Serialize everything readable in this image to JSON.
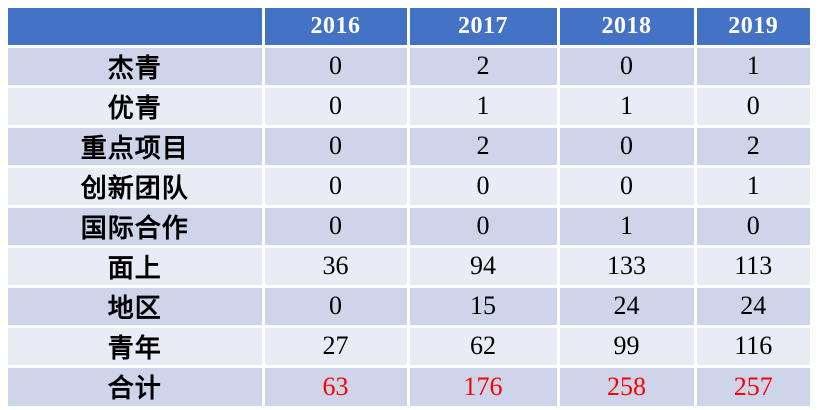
{
  "chart_data": {
    "type": "table",
    "corner_label": "",
    "categories": [
      "2016",
      "2017",
      "2018",
      "2019"
    ],
    "series": [
      {
        "name": "杰青",
        "values": [
          0,
          2,
          0,
          1
        ],
        "highlight": false
      },
      {
        "name": "优青",
        "values": [
          0,
          1,
          1,
          0
        ],
        "highlight": false
      },
      {
        "name": "重点项目",
        "values": [
          0,
          2,
          0,
          2
        ],
        "highlight": false
      },
      {
        "name": "创新团队",
        "values": [
          0,
          0,
          0,
          1
        ],
        "highlight": false
      },
      {
        "name": "国际合作",
        "values": [
          0,
          0,
          1,
          0
        ],
        "highlight": false
      },
      {
        "name": "面上",
        "values": [
          36,
          94,
          133,
          113
        ],
        "highlight": false
      },
      {
        "name": "地区",
        "values": [
          0,
          15,
          24,
          24
        ],
        "highlight": false
      },
      {
        "name": "青年",
        "values": [
          27,
          62,
          99,
          116
        ],
        "highlight": false
      },
      {
        "name": "合计",
        "values": [
          63,
          176,
          258,
          257
        ],
        "highlight": true
      }
    ],
    "layout_hints": {
      "banded_rows": true,
      "header_position": "top",
      "first_column_is_row_labels": true
    }
  },
  "colors": {
    "header_bg": "#4472C4",
    "header_text": "#FFFFFF",
    "band_dark": "#CED4EA",
    "band_light": "#E9EBF5",
    "body_text": "#000000",
    "total_value_text": "#FF0000",
    "gridline": "#FFFFFF",
    "page_bg": "#FFFFFF"
  }
}
